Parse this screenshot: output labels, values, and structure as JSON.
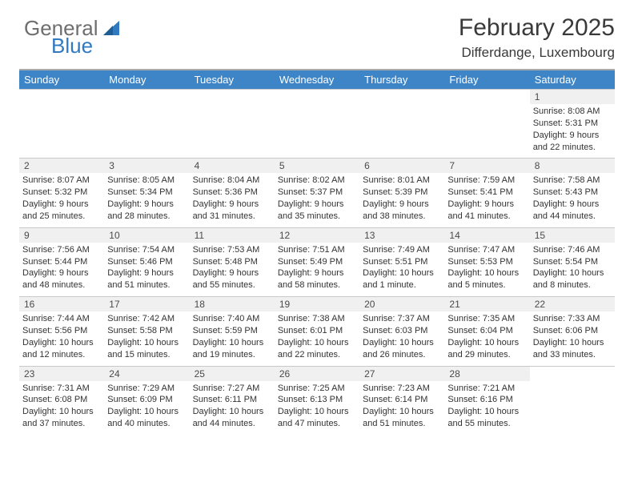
{
  "logo": {
    "text1": "General",
    "text2": "Blue",
    "sail_color": "#2f7ac0",
    "gray": "#6e6e6e"
  },
  "title": "February 2025",
  "subtitle": "Differdange, Luxembourg",
  "colors": {
    "header_bg": "#3d85c6",
    "header_text": "#ffffff",
    "daynum_bg": "#f0f0f0",
    "rule": "#c9c9c9",
    "top_rule": "#a9a9a9",
    "text": "#333333"
  },
  "dow": [
    "Sunday",
    "Monday",
    "Tuesday",
    "Wednesday",
    "Thursday",
    "Friday",
    "Saturday"
  ],
  "weeks": [
    [
      null,
      null,
      null,
      null,
      null,
      null,
      {
        "n": "1",
        "sr": "Sunrise: 8:08 AM",
        "ss": "Sunset: 5:31 PM",
        "d1": "Daylight: 9 hours",
        "d2": "and 22 minutes."
      }
    ],
    [
      {
        "n": "2",
        "sr": "Sunrise: 8:07 AM",
        "ss": "Sunset: 5:32 PM",
        "d1": "Daylight: 9 hours",
        "d2": "and 25 minutes."
      },
      {
        "n": "3",
        "sr": "Sunrise: 8:05 AM",
        "ss": "Sunset: 5:34 PM",
        "d1": "Daylight: 9 hours",
        "d2": "and 28 minutes."
      },
      {
        "n": "4",
        "sr": "Sunrise: 8:04 AM",
        "ss": "Sunset: 5:36 PM",
        "d1": "Daylight: 9 hours",
        "d2": "and 31 minutes."
      },
      {
        "n": "5",
        "sr": "Sunrise: 8:02 AM",
        "ss": "Sunset: 5:37 PM",
        "d1": "Daylight: 9 hours",
        "d2": "and 35 minutes."
      },
      {
        "n": "6",
        "sr": "Sunrise: 8:01 AM",
        "ss": "Sunset: 5:39 PM",
        "d1": "Daylight: 9 hours",
        "d2": "and 38 minutes."
      },
      {
        "n": "7",
        "sr": "Sunrise: 7:59 AM",
        "ss": "Sunset: 5:41 PM",
        "d1": "Daylight: 9 hours",
        "d2": "and 41 minutes."
      },
      {
        "n": "8",
        "sr": "Sunrise: 7:58 AM",
        "ss": "Sunset: 5:43 PM",
        "d1": "Daylight: 9 hours",
        "d2": "and 44 minutes."
      }
    ],
    [
      {
        "n": "9",
        "sr": "Sunrise: 7:56 AM",
        "ss": "Sunset: 5:44 PM",
        "d1": "Daylight: 9 hours",
        "d2": "and 48 minutes."
      },
      {
        "n": "10",
        "sr": "Sunrise: 7:54 AM",
        "ss": "Sunset: 5:46 PM",
        "d1": "Daylight: 9 hours",
        "d2": "and 51 minutes."
      },
      {
        "n": "11",
        "sr": "Sunrise: 7:53 AM",
        "ss": "Sunset: 5:48 PM",
        "d1": "Daylight: 9 hours",
        "d2": "and 55 minutes."
      },
      {
        "n": "12",
        "sr": "Sunrise: 7:51 AM",
        "ss": "Sunset: 5:49 PM",
        "d1": "Daylight: 9 hours",
        "d2": "and 58 minutes."
      },
      {
        "n": "13",
        "sr": "Sunrise: 7:49 AM",
        "ss": "Sunset: 5:51 PM",
        "d1": "Daylight: 10 hours",
        "d2": "and 1 minute."
      },
      {
        "n": "14",
        "sr": "Sunrise: 7:47 AM",
        "ss": "Sunset: 5:53 PM",
        "d1": "Daylight: 10 hours",
        "d2": "and 5 minutes."
      },
      {
        "n": "15",
        "sr": "Sunrise: 7:46 AM",
        "ss": "Sunset: 5:54 PM",
        "d1": "Daylight: 10 hours",
        "d2": "and 8 minutes."
      }
    ],
    [
      {
        "n": "16",
        "sr": "Sunrise: 7:44 AM",
        "ss": "Sunset: 5:56 PM",
        "d1": "Daylight: 10 hours",
        "d2": "and 12 minutes."
      },
      {
        "n": "17",
        "sr": "Sunrise: 7:42 AM",
        "ss": "Sunset: 5:58 PM",
        "d1": "Daylight: 10 hours",
        "d2": "and 15 minutes."
      },
      {
        "n": "18",
        "sr": "Sunrise: 7:40 AM",
        "ss": "Sunset: 5:59 PM",
        "d1": "Daylight: 10 hours",
        "d2": "and 19 minutes."
      },
      {
        "n": "19",
        "sr": "Sunrise: 7:38 AM",
        "ss": "Sunset: 6:01 PM",
        "d1": "Daylight: 10 hours",
        "d2": "and 22 minutes."
      },
      {
        "n": "20",
        "sr": "Sunrise: 7:37 AM",
        "ss": "Sunset: 6:03 PM",
        "d1": "Daylight: 10 hours",
        "d2": "and 26 minutes."
      },
      {
        "n": "21",
        "sr": "Sunrise: 7:35 AM",
        "ss": "Sunset: 6:04 PM",
        "d1": "Daylight: 10 hours",
        "d2": "and 29 minutes."
      },
      {
        "n": "22",
        "sr": "Sunrise: 7:33 AM",
        "ss": "Sunset: 6:06 PM",
        "d1": "Daylight: 10 hours",
        "d2": "and 33 minutes."
      }
    ],
    [
      {
        "n": "23",
        "sr": "Sunrise: 7:31 AM",
        "ss": "Sunset: 6:08 PM",
        "d1": "Daylight: 10 hours",
        "d2": "and 37 minutes."
      },
      {
        "n": "24",
        "sr": "Sunrise: 7:29 AM",
        "ss": "Sunset: 6:09 PM",
        "d1": "Daylight: 10 hours",
        "d2": "and 40 minutes."
      },
      {
        "n": "25",
        "sr": "Sunrise: 7:27 AM",
        "ss": "Sunset: 6:11 PM",
        "d1": "Daylight: 10 hours",
        "d2": "and 44 minutes."
      },
      {
        "n": "26",
        "sr": "Sunrise: 7:25 AM",
        "ss": "Sunset: 6:13 PM",
        "d1": "Daylight: 10 hours",
        "d2": "and 47 minutes."
      },
      {
        "n": "27",
        "sr": "Sunrise: 7:23 AM",
        "ss": "Sunset: 6:14 PM",
        "d1": "Daylight: 10 hours",
        "d2": "and 51 minutes."
      },
      {
        "n": "28",
        "sr": "Sunrise: 7:21 AM",
        "ss": "Sunset: 6:16 PM",
        "d1": "Daylight: 10 hours",
        "d2": "and 55 minutes."
      },
      null
    ]
  ]
}
